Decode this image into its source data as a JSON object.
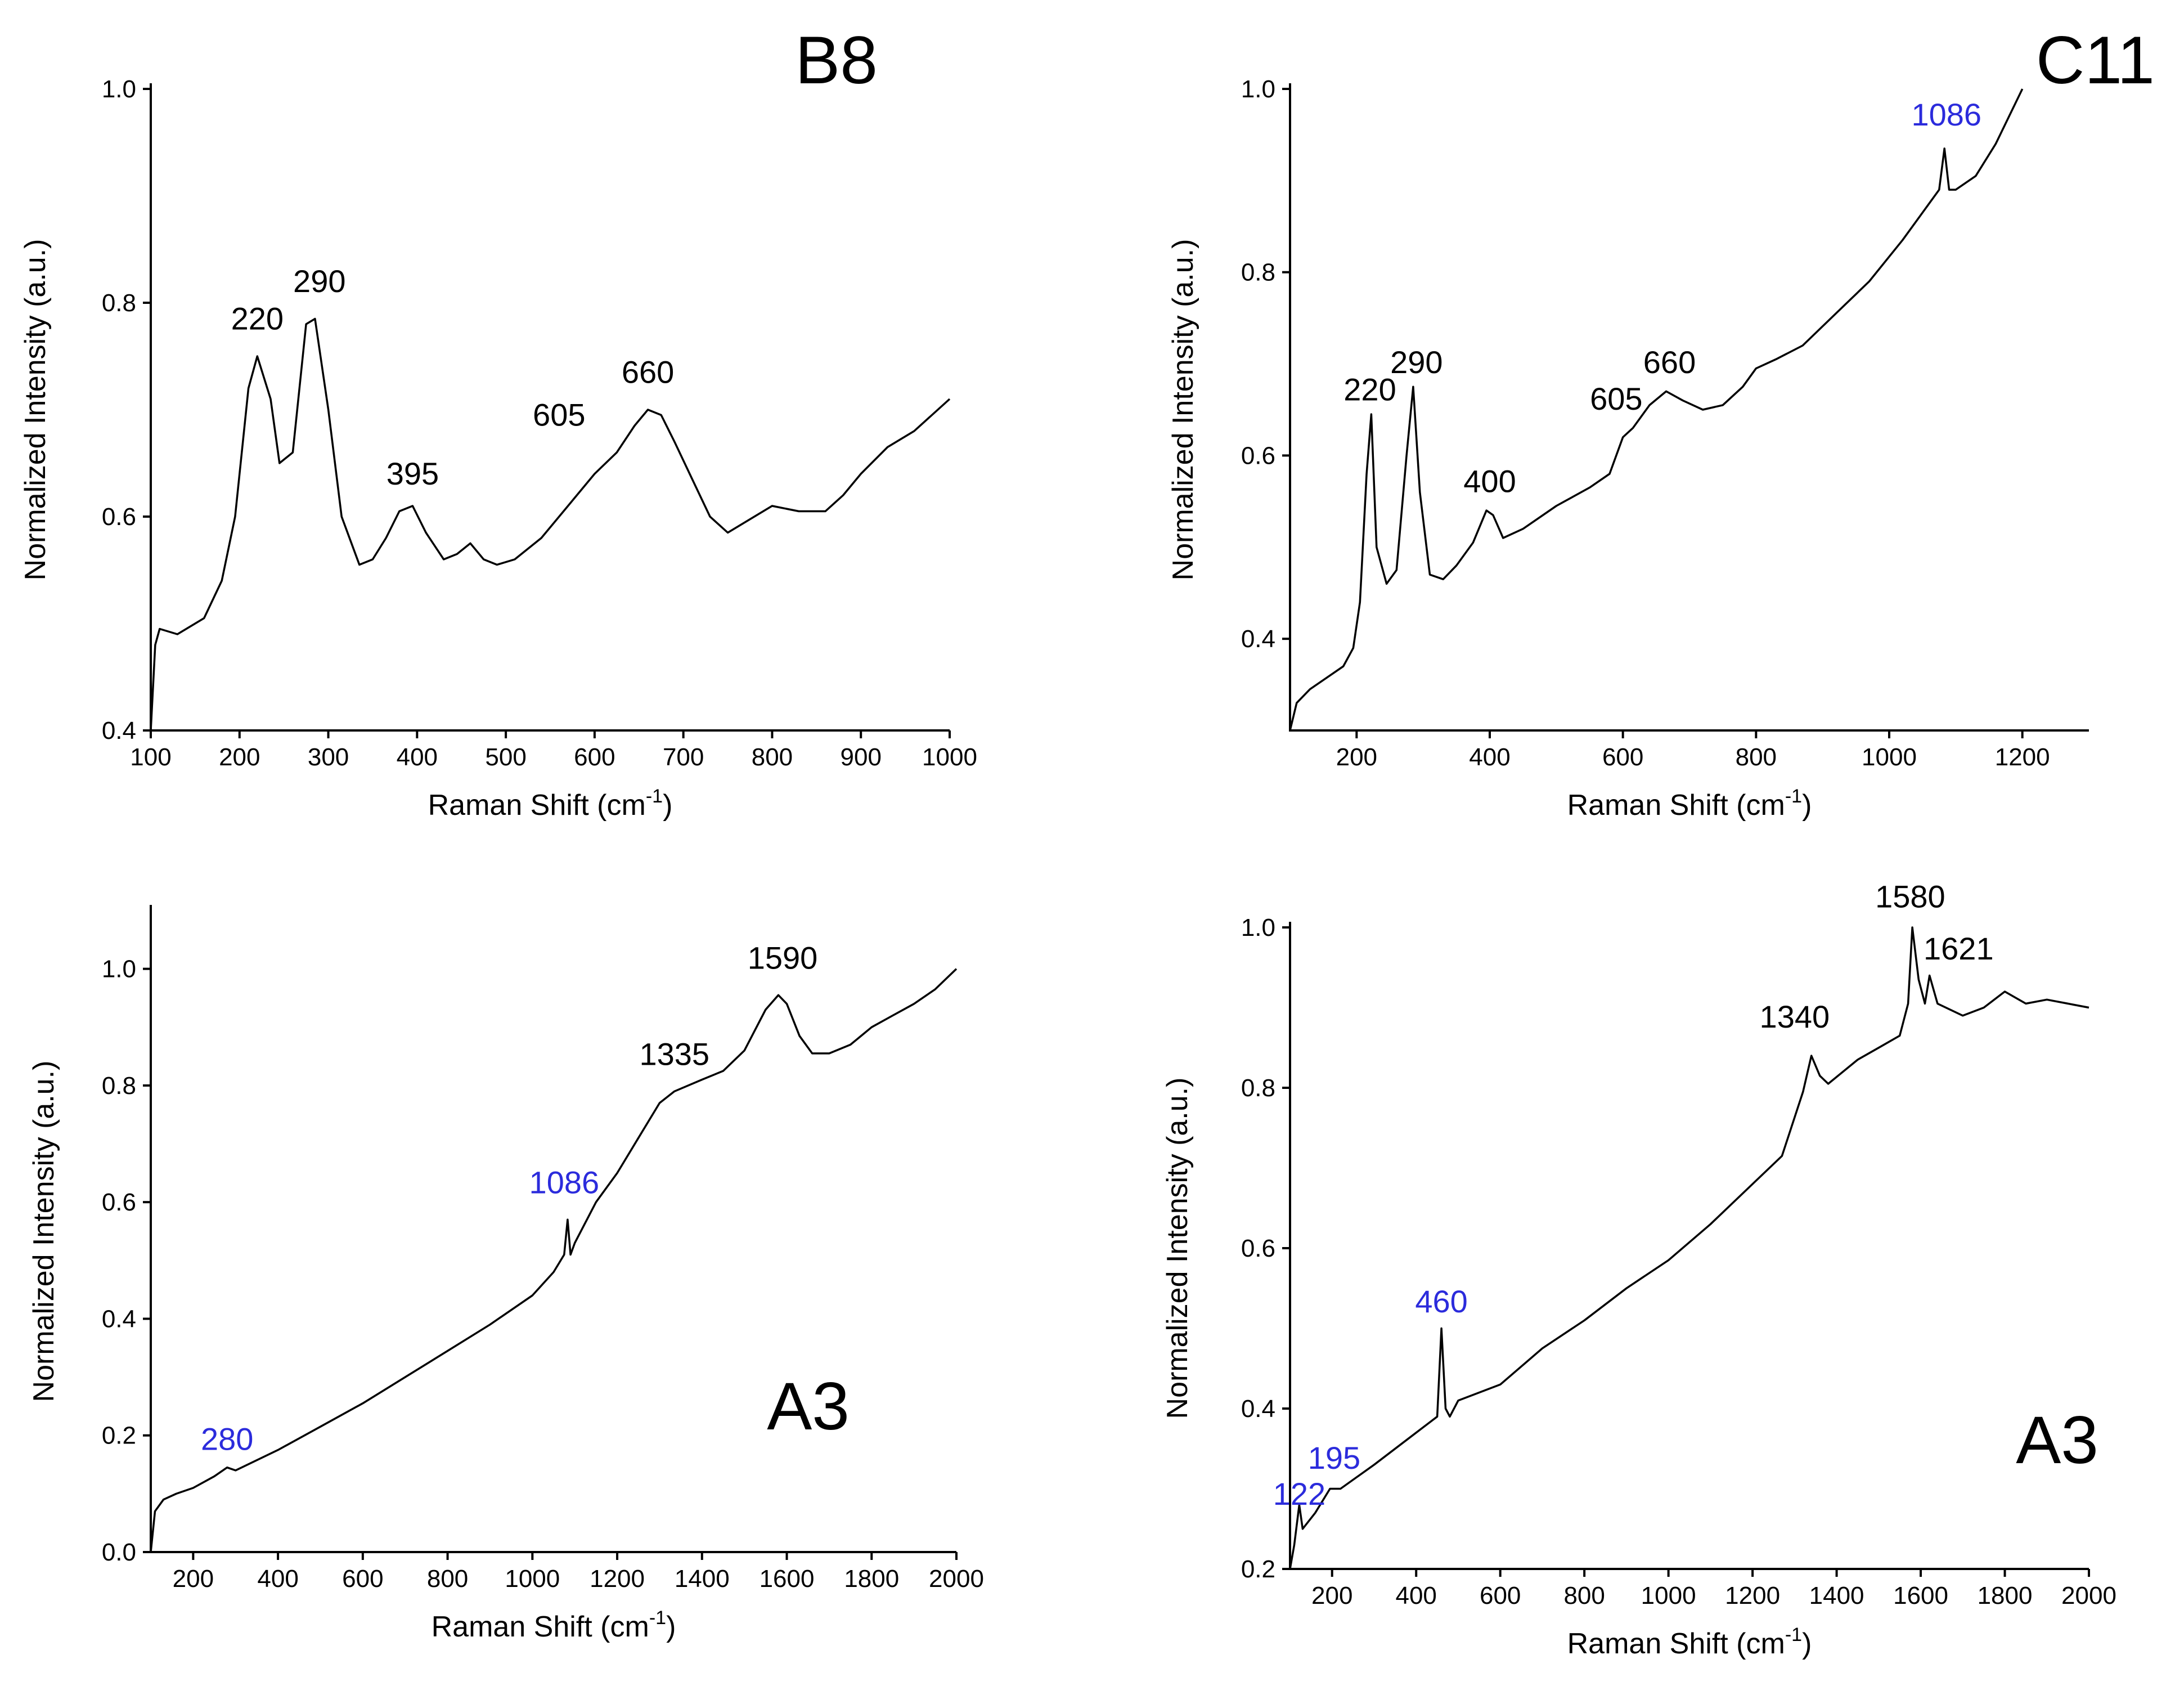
{
  "colors": {
    "black": "#000000",
    "blue": "#2b2bdc"
  },
  "chart_data": [
    {
      "type": "line",
      "panel_label": "B8",
      "xlabel": "Raman Shift (cm",
      "xlabel_sup": "-1",
      "xlabel_close": ")",
      "ylabel": "Normalized Intensity (a.u.)",
      "xlim": [
        100,
        1000
      ],
      "ylim": [
        0.4,
        1.0
      ],
      "x_ticks": [
        "100",
        "200",
        "300",
        "400",
        "500",
        "600",
        "700",
        "800",
        "900",
        "1000"
      ],
      "y_ticks": [
        "0.4",
        "0.6",
        "0.8",
        "1.0"
      ],
      "x": [
        100,
        105,
        110,
        130,
        160,
        180,
        195,
        210,
        220,
        235,
        245,
        260,
        275,
        285,
        300,
        315,
        335,
        350,
        365,
        380,
        395,
        410,
        430,
        445,
        460,
        475,
        490,
        510,
        540,
        570,
        600,
        625,
        645,
        660,
        675,
        690,
        710,
        730,
        750,
        770,
        800,
        830,
        860,
        880,
        900,
        930,
        960,
        1000
      ],
      "values": [
        0.4,
        0.48,
        0.495,
        0.49,
        0.505,
        0.54,
        0.6,
        0.72,
        0.75,
        0.71,
        0.65,
        0.66,
        0.78,
        0.785,
        0.7,
        0.6,
        0.555,
        0.56,
        0.58,
        0.605,
        0.61,
        0.585,
        0.56,
        0.565,
        0.575,
        0.56,
        0.555,
        0.56,
        0.58,
        0.61,
        0.64,
        0.66,
        0.685,
        0.7,
        0.695,
        0.67,
        0.635,
        0.6,
        0.585,
        0.595,
        0.61,
        0.605,
        0.605,
        0.62,
        0.64,
        0.665,
        0.68,
        0.71
      ],
      "peaks": [
        {
          "label": "220",
          "x": 220,
          "y": 0.775,
          "color": "black"
        },
        {
          "label": "290",
          "x": 290,
          "y": 0.81,
          "color": "black"
        },
        {
          "label": "395",
          "x": 395,
          "y": 0.63,
          "color": "black"
        },
        {
          "label": "605",
          "x": 560,
          "y": 0.685,
          "color": "black"
        },
        {
          "label": "660",
          "x": 660,
          "y": 0.725,
          "color": "black"
        }
      ]
    },
    {
      "type": "line",
      "panel_label": "C11",
      "xlabel": "Raman Shift (cm",
      "xlabel_sup": "-1",
      "xlabel_close": ")",
      "ylabel": "Normalized Intensity (a.u.)",
      "xlim": [
        100,
        1300
      ],
      "ylim": [
        0.3,
        1.0
      ],
      "x_ticks": [
        "200",
        "400",
        "600",
        "800",
        "1000",
        "1200"
      ],
      "y_ticks": [
        "0.4",
        "0.6",
        "0.8",
        "1.0"
      ],
      "x": [
        100,
        110,
        130,
        160,
        180,
        195,
        205,
        215,
        222,
        230,
        245,
        260,
        275,
        285,
        295,
        310,
        330,
        350,
        375,
        395,
        405,
        420,
        450,
        500,
        550,
        580,
        600,
        615,
        640,
        665,
        690,
        720,
        750,
        780,
        800,
        830,
        870,
        920,
        970,
        1020,
        1050,
        1075,
        1083,
        1090,
        1100,
        1130,
        1160,
        1200
      ],
      "values": [
        0.3,
        0.33,
        0.345,
        0.36,
        0.37,
        0.39,
        0.44,
        0.58,
        0.645,
        0.5,
        0.46,
        0.475,
        0.6,
        0.675,
        0.56,
        0.47,
        0.465,
        0.48,
        0.505,
        0.54,
        0.535,
        0.51,
        0.52,
        0.545,
        0.565,
        0.58,
        0.62,
        0.63,
        0.655,
        0.67,
        0.66,
        0.65,
        0.655,
        0.675,
        0.695,
        0.705,
        0.72,
        0.755,
        0.79,
        0.835,
        0.865,
        0.89,
        0.935,
        0.89,
        0.89,
        0.905,
        0.94,
        1.0
      ],
      "peaks": [
        {
          "label": "220",
          "x": 220,
          "y": 0.66,
          "color": "black"
        },
        {
          "label": "290",
          "x": 290,
          "y": 0.69,
          "color": "black"
        },
        {
          "label": "400",
          "x": 400,
          "y": 0.56,
          "color": "black"
        },
        {
          "label": "605",
          "x": 590,
          "y": 0.65,
          "color": "black"
        },
        {
          "label": "660",
          "x": 670,
          "y": 0.69,
          "color": "black"
        },
        {
          "label": "1086",
          "x": 1086,
          "y": 0.96,
          "color": "blue"
        }
      ]
    },
    {
      "type": "line",
      "panel_label": "A3",
      "xlabel": "Raman Shift (cm",
      "xlabel_sup": "-1",
      "xlabel_close": ")",
      "ylabel": "Normalized Intensity (a.u.)",
      "xlim": [
        100,
        2000
      ],
      "ylim": [
        0.0,
        1.1
      ],
      "x_ticks": [
        "200",
        "400",
        "600",
        "800",
        "1000",
        "1200",
        "1400",
        "1600",
        "1800",
        "2000"
      ],
      "y_ticks": [
        "0.0",
        "0.2",
        "0.4",
        "0.6",
        "0.8",
        "1.0"
      ],
      "x": [
        100,
        110,
        130,
        160,
        200,
        250,
        280,
        300,
        400,
        500,
        600,
        700,
        800,
        900,
        1000,
        1050,
        1075,
        1083,
        1090,
        1100,
        1150,
        1200,
        1250,
        1300,
        1335,
        1400,
        1450,
        1500,
        1550,
        1580,
        1600,
        1630,
        1660,
        1700,
        1750,
        1800,
        1850,
        1900,
        1950,
        2000
      ],
      "values": [
        0.0,
        0.07,
        0.09,
        0.1,
        0.11,
        0.13,
        0.145,
        0.14,
        0.175,
        0.215,
        0.255,
        0.3,
        0.345,
        0.39,
        0.44,
        0.48,
        0.51,
        0.57,
        0.51,
        0.53,
        0.6,
        0.65,
        0.71,
        0.77,
        0.79,
        0.81,
        0.825,
        0.86,
        0.93,
        0.955,
        0.94,
        0.885,
        0.855,
        0.855,
        0.87,
        0.9,
        0.92,
        0.94,
        0.965,
        1.0
      ],
      "peaks": [
        {
          "label": "280",
          "x": 280,
          "y": 0.175,
          "color": "blue"
        },
        {
          "label": "1086",
          "x": 1075,
          "y": 0.615,
          "color": "blue"
        },
        {
          "label": "1335",
          "x": 1335,
          "y": 0.835,
          "color": "black"
        },
        {
          "label": "1590",
          "x": 1590,
          "y": 1.0,
          "color": "black"
        }
      ]
    },
    {
      "type": "line",
      "panel_label": "A3",
      "xlabel": "Raman Shift (cm",
      "xlabel_sup": "-1",
      "xlabel_close": ")",
      "ylabel": "Normalized Intensity (a.u.)",
      "xlim": [
        100,
        2000
      ],
      "ylim": [
        0.2,
        1.0
      ],
      "x_ticks": [
        "200",
        "400",
        "600",
        "800",
        "1000",
        "1200",
        "1400",
        "1600",
        "1800",
        "2000"
      ],
      "y_ticks": [
        "0.2",
        "0.4",
        "0.6",
        "0.8",
        "1.0"
      ],
      "x": [
        100,
        110,
        122,
        130,
        160,
        195,
        220,
        300,
        400,
        450,
        460,
        470,
        480,
        500,
        600,
        700,
        800,
        900,
        1000,
        1100,
        1200,
        1270,
        1320,
        1340,
        1360,
        1380,
        1450,
        1500,
        1550,
        1570,
        1580,
        1595,
        1610,
        1621,
        1640,
        1700,
        1750,
        1800,
        1850,
        1900,
        1950,
        2000
      ],
      "values": [
        0.2,
        0.23,
        0.28,
        0.25,
        0.27,
        0.3,
        0.3,
        0.33,
        0.37,
        0.39,
        0.5,
        0.4,
        0.39,
        0.41,
        0.43,
        0.475,
        0.51,
        0.55,
        0.585,
        0.63,
        0.68,
        0.715,
        0.795,
        0.84,
        0.815,
        0.805,
        0.835,
        0.85,
        0.865,
        0.905,
        1.0,
        0.935,
        0.905,
        0.94,
        0.905,
        0.89,
        0.9,
        0.92,
        0.905,
        0.91,
        0.905,
        0.9
      ],
      "peaks": [
        {
          "label": "122",
          "x": 122,
          "y": 0.28,
          "color": "blue"
        },
        {
          "label": "195",
          "x": 205,
          "y": 0.325,
          "color": "blue"
        },
        {
          "label": "460",
          "x": 460,
          "y": 0.52,
          "color": "blue"
        },
        {
          "label": "1340",
          "x": 1300,
          "y": 0.875,
          "color": "black"
        },
        {
          "label": "1580",
          "x": 1575,
          "y": 1.025,
          "color": "black"
        },
        {
          "label": "1621",
          "x": 1690,
          "y": 0.96,
          "color": "black"
        }
      ]
    }
  ]
}
